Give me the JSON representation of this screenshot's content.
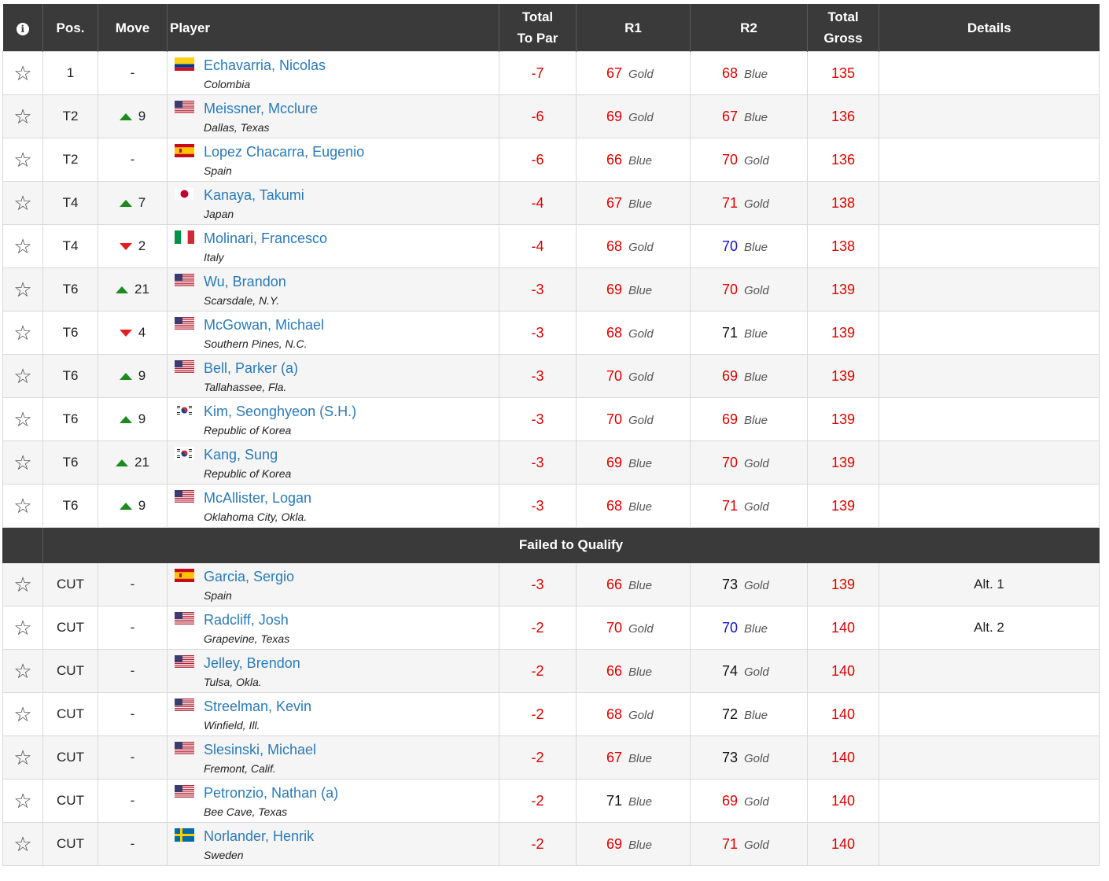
{
  "header": {
    "info_icon": "i",
    "pos": "Pos.",
    "move": "Move",
    "player": "Player",
    "total_line1": "Total",
    "total_line2": "To Par",
    "r1": "R1",
    "r2": "R2",
    "gross_line1": "Total",
    "gross_line2": "Gross",
    "details": "Details"
  },
  "section_label": "Failed to Qualify",
  "rows": [
    {
      "pos": "1",
      "move": "-",
      "dir": "",
      "flag": "colombia",
      "name": "Echavarria, Nicolas",
      "loc": "Colombia",
      "par": "-7",
      "r1": "67",
      "r1c": "red",
      "r1t": "Gold",
      "r2": "68",
      "r2c": "red",
      "r2t": "Blue",
      "gross": "135",
      "details": ""
    },
    {
      "pos": "T2",
      "move": "9",
      "dir": "up",
      "flag": "usa",
      "name": "Meissner, Mcclure",
      "loc": "Dallas, Texas",
      "par": "-6",
      "r1": "69",
      "r1c": "red",
      "r1t": "Gold",
      "r2": "67",
      "r2c": "red",
      "r2t": "Blue",
      "gross": "136",
      "details": ""
    },
    {
      "pos": "T2",
      "move": "-",
      "dir": "",
      "flag": "spain",
      "name": "Lopez Chacarra, Eugenio",
      "loc": "Spain",
      "par": "-6",
      "r1": "66",
      "r1c": "red",
      "r1t": "Blue",
      "r2": "70",
      "r2c": "red",
      "r2t": "Gold",
      "gross": "136",
      "details": ""
    },
    {
      "pos": "T4",
      "move": "7",
      "dir": "up",
      "flag": "japan",
      "name": "Kanaya, Takumi",
      "loc": "Japan",
      "par": "-4",
      "r1": "67",
      "r1c": "red",
      "r1t": "Blue",
      "r2": "71",
      "r2c": "red",
      "r2t": "Gold",
      "gross": "138",
      "details": ""
    },
    {
      "pos": "T4",
      "move": "2",
      "dir": "down",
      "flag": "italy",
      "name": "Molinari, Francesco",
      "loc": "Italy",
      "par": "-4",
      "r1": "68",
      "r1c": "red",
      "r1t": "Gold",
      "r2": "70",
      "r2c": "blue",
      "r2t": "Blue",
      "gross": "138",
      "details": ""
    },
    {
      "pos": "T6",
      "move": "21",
      "dir": "up",
      "flag": "usa",
      "name": "Wu, Brandon",
      "loc": "Scarsdale, N.Y.",
      "par": "-3",
      "r1": "69",
      "r1c": "red",
      "r1t": "Blue",
      "r2": "70",
      "r2c": "red",
      "r2t": "Gold",
      "gross": "139",
      "details": ""
    },
    {
      "pos": "T6",
      "move": "4",
      "dir": "down",
      "flag": "usa",
      "name": "McGowan, Michael",
      "loc": "Southern Pines, N.C.",
      "par": "-3",
      "r1": "68",
      "r1c": "red",
      "r1t": "Gold",
      "r2": "71",
      "r2c": "black",
      "r2t": "Blue",
      "gross": "139",
      "details": ""
    },
    {
      "pos": "T6",
      "move": "9",
      "dir": "up",
      "flag": "usa",
      "name": "Bell, Parker (a)",
      "loc": "Tallahassee, Fla.",
      "par": "-3",
      "r1": "70",
      "r1c": "red",
      "r1t": "Gold",
      "r2": "69",
      "r2c": "red",
      "r2t": "Blue",
      "gross": "139",
      "details": ""
    },
    {
      "pos": "T6",
      "move": "9",
      "dir": "up",
      "flag": "korea",
      "name": "Kim, Seonghyeon (S.H.)",
      "loc": "Republic of Korea",
      "par": "-3",
      "r1": "70",
      "r1c": "red",
      "r1t": "Gold",
      "r2": "69",
      "r2c": "red",
      "r2t": "Blue",
      "gross": "139",
      "details": ""
    },
    {
      "pos": "T6",
      "move": "21",
      "dir": "up",
      "flag": "korea",
      "name": "Kang, Sung",
      "loc": "Republic of Korea",
      "par": "-3",
      "r1": "69",
      "r1c": "red",
      "r1t": "Blue",
      "r2": "70",
      "r2c": "red",
      "r2t": "Gold",
      "gross": "139",
      "details": ""
    },
    {
      "pos": "T6",
      "move": "9",
      "dir": "up",
      "flag": "usa",
      "name": "McAllister, Logan",
      "loc": "Oklahoma City, Okla.",
      "par": "-3",
      "r1": "68",
      "r1c": "red",
      "r1t": "Blue",
      "r2": "71",
      "r2c": "red",
      "r2t": "Gold",
      "gross": "139",
      "details": ""
    }
  ],
  "cut_rows": [
    {
      "pos": "CUT",
      "move": "-",
      "dir": "",
      "flag": "spain",
      "name": "Garcia, Sergio",
      "loc": "Spain",
      "par": "-3",
      "r1": "66",
      "r1c": "red",
      "r1t": "Blue",
      "r2": "73",
      "r2c": "black",
      "r2t": "Gold",
      "gross": "139",
      "details": "Alt. 1"
    },
    {
      "pos": "CUT",
      "move": "-",
      "dir": "",
      "flag": "usa",
      "name": "Radcliff, Josh",
      "loc": "Grapevine, Texas",
      "par": "-2",
      "r1": "70",
      "r1c": "red",
      "r1t": "Gold",
      "r2": "70",
      "r2c": "blue",
      "r2t": "Blue",
      "gross": "140",
      "details": "Alt. 2"
    },
    {
      "pos": "CUT",
      "move": "-",
      "dir": "",
      "flag": "usa",
      "name": "Jelley, Brendon",
      "loc": "Tulsa, Okla.",
      "par": "-2",
      "r1": "66",
      "r1c": "red",
      "r1t": "Blue",
      "r2": "74",
      "r2c": "black",
      "r2t": "Gold",
      "gross": "140",
      "details": ""
    },
    {
      "pos": "CUT",
      "move": "-",
      "dir": "",
      "flag": "usa",
      "name": "Streelman, Kevin",
      "loc": "Winfield, Ill.",
      "par": "-2",
      "r1": "68",
      "r1c": "red",
      "r1t": "Gold",
      "r2": "72",
      "r2c": "black",
      "r2t": "Blue",
      "gross": "140",
      "details": ""
    },
    {
      "pos": "CUT",
      "move": "-",
      "dir": "",
      "flag": "usa",
      "name": "Slesinski, Michael",
      "loc": "Fremont, Calif.",
      "par": "-2",
      "r1": "67",
      "r1c": "red",
      "r1t": "Blue",
      "r2": "73",
      "r2c": "black",
      "r2t": "Gold",
      "gross": "140",
      "details": ""
    },
    {
      "pos": "CUT",
      "move": "-",
      "dir": "",
      "flag": "usa",
      "name": "Petronzio, Nathan (a)",
      "loc": "Bee Cave, Texas",
      "par": "-2",
      "r1": "71",
      "r1c": "black",
      "r1t": "Blue",
      "r2": "69",
      "r2c": "red",
      "r2t": "Gold",
      "gross": "140",
      "details": ""
    },
    {
      "pos": "CUT",
      "move": "-",
      "dir": "",
      "flag": "sweden",
      "name": "Norlander, Henrik",
      "loc": "Sweden",
      "par": "-2",
      "r1": "69",
      "r1c": "red",
      "r1t": "Blue",
      "r2": "71",
      "r2c": "red",
      "r2t": "Gold",
      "gross": "140",
      "details": ""
    }
  ],
  "colors": {
    "header_bg": "#3a3a3a",
    "link": "#2a7ab8",
    "under_par": "#e00000",
    "up": "#1c8a1c",
    "down": "#e02020"
  }
}
